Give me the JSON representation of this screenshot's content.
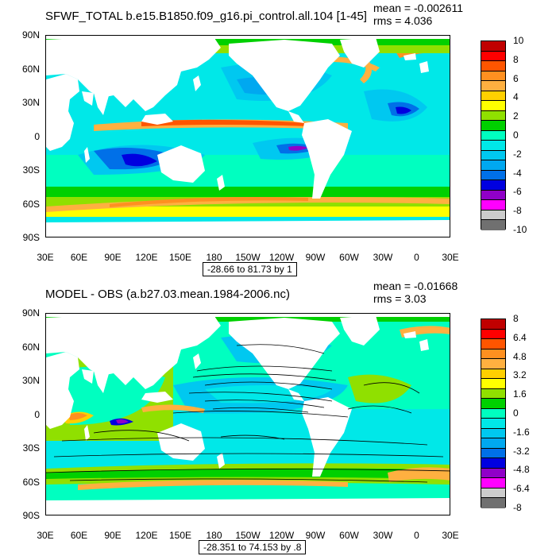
{
  "colors": [
    "#c00000",
    "#ff0000",
    "#ff5500",
    "#ff9020",
    "#ffb040",
    "#ffd000",
    "#ffff00",
    "#90e000",
    "#00d000",
    "#00ffc0",
    "#00e8e8",
    "#00c8f0",
    "#00a8f0",
    "#0070e8",
    "#0000e0",
    "#9000c8",
    "#ff00ff",
    "#cccccc",
    "#707070"
  ],
  "lat_ticks": [
    "90N",
    "60N",
    "30N",
    "0",
    "30S",
    "60S",
    "90S"
  ],
  "lon_ticks": [
    "30E",
    "60E",
    "90E",
    "120E",
    "150E",
    "180",
    "150W",
    "120W",
    "90W",
    "60W",
    "30W",
    "0",
    "30E"
  ],
  "panels": [
    {
      "id": "top",
      "title": "SFWF_TOTAL b.e15.B1850.f09_g16.pi_control.all.104 [1-45]",
      "mean": "mean = -0.002611",
      "rms": "rms = 4.036",
      "range": "-28.66 to 81.73 by 1",
      "colorbar_labels": [
        "10",
        "8",
        "6",
        "4",
        "2",
        "0",
        "-2",
        "-4",
        "-6",
        "-8",
        "-10"
      ],
      "contours": false
    },
    {
      "id": "bottom",
      "title": "MODEL - OBS (a.b27.03.mean.1984-2006.nc)",
      "mean": "mean = -0.01668",
      "rms": "rms = 3.03",
      "range": "-28.351 to 74.153 by .8",
      "colorbar_labels": [
        "8",
        "6.4",
        "4.8",
        "3.2",
        "1.6",
        "0",
        "-1.6",
        "-3.2",
        "-4.8",
        "-6.4",
        "-8"
      ],
      "contours": true
    }
  ]
}
